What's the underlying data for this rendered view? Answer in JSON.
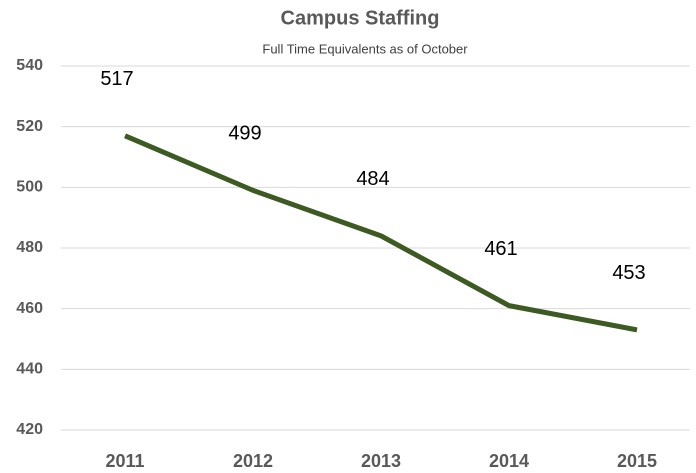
{
  "chart_data": {
    "type": "line",
    "title": "Campus Staffing",
    "subtitle": "Full Time Equivalents as of October",
    "categories": [
      "2011",
      "2012",
      "2013",
      "2014",
      "2015"
    ],
    "values": [
      517,
      499,
      484,
      461,
      453
    ],
    "color": "#3d5a22",
    "ylim": [
      420,
      540
    ],
    "yticks": [
      420,
      440,
      460,
      480,
      500,
      520,
      540
    ],
    "grid": true
  }
}
